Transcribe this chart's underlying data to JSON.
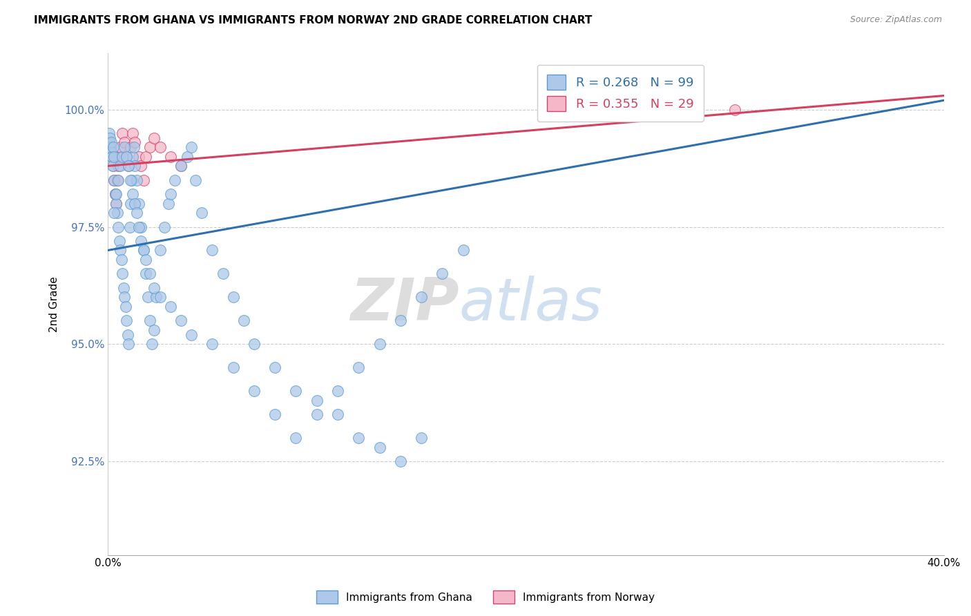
{
  "title": "IMMIGRANTS FROM GHANA VS IMMIGRANTS FROM NORWAY 2ND GRADE CORRELATION CHART",
  "source_text": "Source: ZipAtlas.com",
  "ylabel": "2nd Grade",
  "xlim": [
    0.0,
    40.0
  ],
  "ylim": [
    90.5,
    101.2
  ],
  "yticks": [
    92.5,
    95.0,
    97.5,
    100.0
  ],
  "ytick_labels": [
    "92.5%",
    "95.0%",
    "97.5%",
    "100.0%"
  ],
  "xtick_labels": [
    "0.0%",
    "40.0%"
  ],
  "ghana_color": "#adc8e8",
  "ghana_edge_color": "#5b9bd5",
  "norway_color": "#f4b8c8",
  "norway_edge_color": "#d44070",
  "trend_ghana_color": "#2e6fad",
  "trend_norway_color": "#d44060",
  "legend_ghana_label": "R = 0.268   N = 99",
  "legend_norway_label": "R = 0.355   N = 29",
  "legend_ghana_series": "Immigrants from Ghana",
  "legend_norway_series": "Immigrants from Norway",
  "watermark_zip": "ZIP",
  "watermark_atlas": "atlas",
  "ghana_x": [
    0.05,
    0.08,
    0.1,
    0.12,
    0.15,
    0.18,
    0.2,
    0.22,
    0.25,
    0.28,
    0.3,
    0.35,
    0.4,
    0.45,
    0.5,
    0.55,
    0.6,
    0.65,
    0.7,
    0.75,
    0.8,
    0.85,
    0.9,
    0.95,
    1.0,
    1.05,
    1.1,
    1.15,
    1.2,
    1.25,
    1.3,
    1.4,
    1.5,
    1.6,
    1.7,
    1.8,
    1.9,
    2.0,
    2.1,
    2.2,
    2.3,
    2.5,
    2.7,
    2.9,
    3.0,
    3.2,
    3.5,
    3.8,
    4.0,
    4.2,
    4.5,
    5.0,
    5.5,
    6.0,
    6.5,
    7.0,
    8.0,
    9.0,
    10.0,
    11.0,
    12.0,
    13.0,
    14.0,
    15.0,
    0.3,
    0.4,
    0.5,
    0.6,
    0.7,
    0.8,
    0.9,
    1.0,
    1.1,
    1.2,
    1.3,
    1.4,
    1.5,
    1.6,
    1.7,
    1.8,
    2.0,
    2.2,
    2.5,
    3.0,
    3.5,
    4.0,
    5.0,
    6.0,
    7.0,
    8.0,
    9.0,
    10.0,
    11.0,
    12.0,
    13.0,
    14.0,
    15.0,
    16.0,
    17.0
  ],
  "ghana_y": [
    99.3,
    99.5,
    99.4,
    99.2,
    99.1,
    99.3,
    99.0,
    98.8,
    99.2,
    99.0,
    98.5,
    98.2,
    98.0,
    97.8,
    97.5,
    97.2,
    97.0,
    96.8,
    96.5,
    96.2,
    96.0,
    95.8,
    95.5,
    95.2,
    95.0,
    97.5,
    98.0,
    98.5,
    99.0,
    99.2,
    98.8,
    98.5,
    98.0,
    97.5,
    97.0,
    96.5,
    96.0,
    95.5,
    95.0,
    95.3,
    96.0,
    97.0,
    97.5,
    98.0,
    98.2,
    98.5,
    98.8,
    99.0,
    99.2,
    98.5,
    97.8,
    97.0,
    96.5,
    96.0,
    95.5,
    95.0,
    94.5,
    94.0,
    93.8,
    93.5,
    93.0,
    92.8,
    92.5,
    93.0,
    97.8,
    98.2,
    98.5,
    98.8,
    99.0,
    99.2,
    99.0,
    98.8,
    98.5,
    98.2,
    98.0,
    97.8,
    97.5,
    97.2,
    97.0,
    96.8,
    96.5,
    96.2,
    96.0,
    95.8,
    95.5,
    95.2,
    95.0,
    94.5,
    94.0,
    93.5,
    93.0,
    93.5,
    94.0,
    94.5,
    95.0,
    95.5,
    96.0,
    96.5,
    97.0
  ],
  "norway_x": [
    0.08,
    0.1,
    0.15,
    0.2,
    0.25,
    0.3,
    0.35,
    0.4,
    0.45,
    0.5,
    0.55,
    0.6,
    0.7,
    0.8,
    0.9,
    1.0,
    1.1,
    1.2,
    1.3,
    1.5,
    1.6,
    1.7,
    1.8,
    2.0,
    2.2,
    2.5,
    3.0,
    3.5,
    30.0
  ],
  "norway_y": [
    99.3,
    99.2,
    99.1,
    99.0,
    98.8,
    98.5,
    98.2,
    98.0,
    98.5,
    98.8,
    99.0,
    99.2,
    99.5,
    99.3,
    99.0,
    98.8,
    99.2,
    99.5,
    99.3,
    99.0,
    98.8,
    98.5,
    99.0,
    99.2,
    99.4,
    99.2,
    99.0,
    98.8,
    100.0
  ],
  "trend_ghana_x0": 0.0,
  "trend_ghana_y0": 97.0,
  "trend_ghana_x1": 40.0,
  "trend_ghana_y1": 100.2,
  "trend_norway_x0": 0.0,
  "trend_norway_y0": 98.8,
  "trend_norway_x1": 40.0,
  "trend_norway_y1": 100.3
}
